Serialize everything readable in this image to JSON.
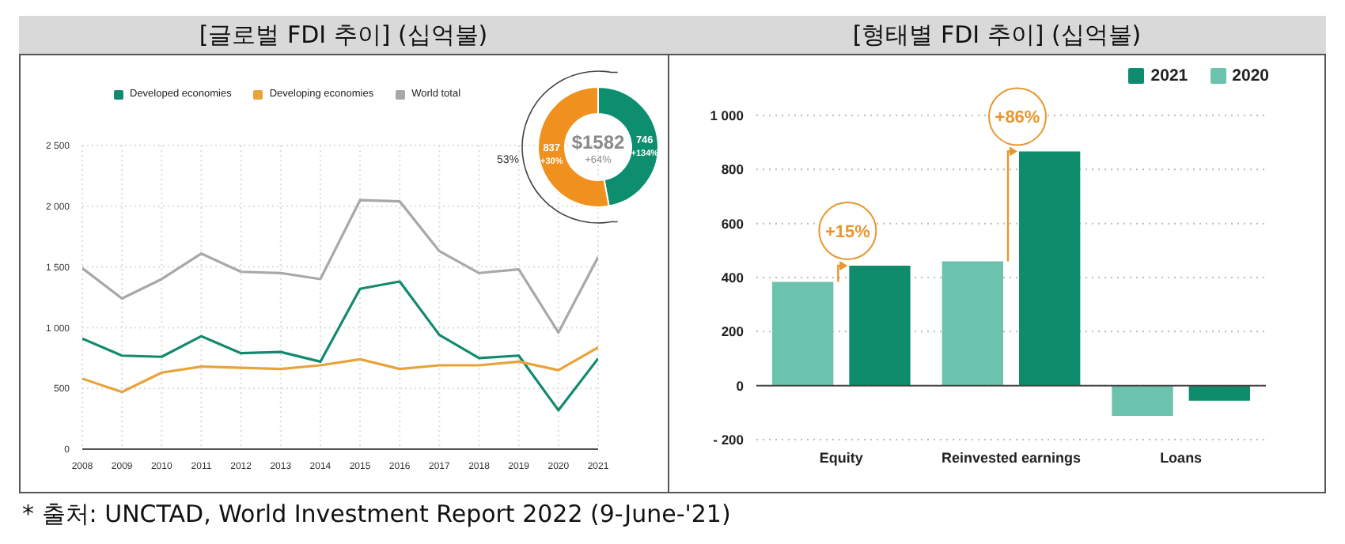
{
  "chart_data": [
    {
      "type": "line",
      "title": "[글로벌 FDI 추이] (십억불)",
      "x": [
        2008,
        2009,
        2010,
        2011,
        2012,
        2013,
        2014,
        2015,
        2016,
        2017,
        2018,
        2019,
        2020,
        2021
      ],
      "xlim": [
        2008,
        2021
      ],
      "xticks": [
        2008,
        2009,
        2010,
        2011,
        2012,
        2013,
        2014,
        2015,
        2016,
        2017,
        2018,
        2019,
        2020,
        2021
      ],
      "ylim": [
        0,
        2500
      ],
      "yticks": [
        0,
        500,
        {
          "value": 1000,
          "label": "1 000"
        },
        {
          "value": 1500,
          "label": "1 500"
        },
        {
          "value": 2000,
          "label": "2 000"
        },
        {
          "value": 2500,
          "label": "2 500"
        }
      ],
      "grid": true,
      "legend": "top",
      "marker": "none",
      "series": [
        {
          "name": "Developed economies",
          "color": "#138a6e",
          "values": [
            910,
            770,
            760,
            930,
            790,
            800,
            720,
            1320,
            1380,
            940,
            750,
            770,
            320,
            746
          ]
        },
        {
          "name": "Developing economies",
          "color": "#e8a33a",
          "values": [
            580,
            470,
            630,
            680,
            670,
            660,
            690,
            740,
            660,
            690,
            690,
            720,
            650,
            837
          ]
        },
        {
          "name": "World total",
          "color": "#a8a8a8",
          "values": [
            1490,
            1240,
            1400,
            1610,
            1460,
            1450,
            1400,
            2050,
            2040,
            1630,
            1450,
            1480,
            960,
            1582
          ]
        }
      ],
      "annotations": [
        "* 출처: UNCTAD, World Investment Report 2022 (9-June-'21)"
      ]
    },
    {
      "type": "donut",
      "categories": [
        null,
        null
      ],
      "values": [
        746,
        837
      ],
      "colors": [
        "#0d8f6f",
        "#f0901e"
      ],
      "data_labels": true,
      "annotations": [
        "$1582",
        "+64%",
        "+134%",
        "+30%",
        "53%"
      ]
    },
    {
      "type": "bar",
      "title": "[형태별 FDI 추이] (십억불)",
      "categories": [
        "Equity",
        "Reinvested earnings",
        "Loans"
      ],
      "ylim": [
        -200,
        1000
      ],
      "yticks": [
        {
          "value": -200,
          "label": "- 200"
        },
        0,
        200,
        400,
        600,
        800,
        {
          "value": 1000,
          "label": "1 000"
        }
      ],
      "grid": "y",
      "legend": "top right",
      "series": [
        {
          "name": "2020",
          "color": "#6cc3ad",
          "values": [
            384,
            460,
            -112
          ]
        },
        {
          "name": "2021",
          "color": "#0e8c6c",
          "values": [
            444,
            867,
            -56
          ]
        }
      ],
      "annotations": [
        "+15%",
        "+86%"
      ]
    }
  ]
}
